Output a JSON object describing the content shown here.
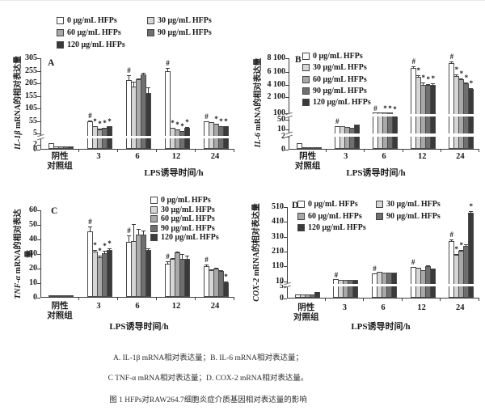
{
  "figure": {
    "xlabel": "LPS诱导时间/h",
    "series_labels": [
      "0 μg/mL HFPs",
      "30 μg/mL HFPs",
      "60 μg/mL HFPs",
      "90 μg/mL HFPs",
      "120 μg/mL HFPs"
    ],
    "series_colors": [
      "#ffffff",
      "#d6d6d6",
      "#a8a8a8",
      "#6f6f6f",
      "#3a3a3a"
    ]
  },
  "chart_data": [
    {
      "id": "A",
      "type": "bar",
      "panel_label": "A",
      "ylabel_gene": "IL-1β",
      "ylabel_rest": " mRNA的相对表达量",
      "ytick_labels": [
        "0",
        "2",
        "5",
        "55",
        "105",
        "155",
        "205",
        "255",
        "305"
      ],
      "ytick_values": [
        0,
        2,
        5,
        55,
        105,
        155,
        205,
        255,
        305
      ],
      "anchors": [
        [
          0,
          0
        ],
        [
          2,
          0.05
        ],
        [
          5,
          0.175
        ],
        [
          305,
          1
        ]
      ],
      "break_fracs": [
        0.135
      ],
      "categories": [
        "阴性\n对照组",
        "3",
        "6",
        "12",
        "24"
      ],
      "groups": [
        {
          "values": [
            2.2,
            1.0,
            0.9,
            0.9,
            1.1
          ],
          "errors": [
            0.3,
            0.15,
            0.1,
            0.1,
            0.15
          ],
          "markers": [
            "",
            "",
            "",
            "",
            ""
          ]
        },
        {
          "values": [
            52,
            30,
            20,
            24,
            32
          ],
          "errors": [
            6,
            4,
            4,
            3,
            4
          ],
          "markers": [
            "#",
            "*",
            "*",
            "*",
            "*"
          ]
        },
        {
          "values": [
            215,
            190,
            218,
            238,
            162
          ],
          "errors": [
            22,
            22,
            7,
            9,
            28
          ],
          "markers": [
            "#",
            "",
            "",
            "",
            ""
          ]
        },
        {
          "values": [
            250,
            24,
            18,
            12,
            26
          ],
          "errors": [
            16,
            5,
            4,
            3,
            5
          ],
          "markers": [
            "#",
            "*",
            "*",
            "*",
            "*"
          ]
        },
        {
          "values": [
            50,
            46,
            40,
            33,
            32
          ],
          "errors": [
            5,
            4,
            4,
            3,
            3
          ],
          "markers": [
            "#",
            "",
            "*",
            "*",
            "*"
          ]
        }
      ]
    },
    {
      "id": "B",
      "type": "bar",
      "panel_label": "B",
      "ylabel_gene": "IL-6",
      "ylabel_rest": " mRNA的相对表达量",
      "ytick_labels": [
        "0",
        "2",
        "10",
        "50",
        "100",
        "2 100",
        "4 100",
        "6 100",
        "8 100"
      ],
      "ytick_values": [
        0,
        2,
        10,
        50,
        100,
        2100,
        4100,
        6100,
        8100
      ],
      "anchors": [
        [
          0,
          0
        ],
        [
          2,
          0.14
        ],
        [
          10,
          0.225
        ],
        [
          50,
          0.325
        ],
        [
          100,
          0.4
        ],
        [
          2100,
          0.572
        ],
        [
          4100,
          0.71
        ],
        [
          6100,
          0.846
        ],
        [
          8100,
          1
        ]
      ],
      "break_fracs": [
        0.155,
        0.375
      ],
      "categories": [
        "阴性\n对照组",
        "3",
        "6",
        "12",
        "24"
      ],
      "groups": [
        {
          "values": [
            0.9,
            0.15,
            0.1,
            0.1,
            0.15
          ],
          "errors": [
            0.15,
            0,
            0,
            0,
            0
          ],
          "markers": [
            "",
            "",
            "",
            "",
            ""
          ]
        },
        {
          "values": [
            20,
            18,
            15,
            12,
            25
          ],
          "errors": [
            4,
            2,
            2,
            2,
            3
          ],
          "markers": [
            "#",
            "",
            "",
            "",
            ""
          ]
        },
        {
          "values": [
            105,
            101,
            100,
            97,
            88
          ],
          "errors": [
            7,
            5,
            5,
            5,
            6
          ],
          "markers": [
            "#",
            "",
            "*",
            "*",
            "*"
          ]
        },
        {
          "values": [
            6600,
            5300,
            4000,
            3900,
            4000
          ],
          "errors": [
            300,
            400,
            400,
            350,
            350
          ],
          "markers": [
            "#",
            "*",
            "*",
            "*",
            "*"
          ]
        },
        {
          "values": [
            7350,
            5400,
            4850,
            4250,
            3300
          ],
          "errors": [
            350,
            300,
            300,
            250,
            250
          ],
          "markers": [
            "#",
            "*",
            "*",
            "*",
            "*"
          ]
        }
      ]
    },
    {
      "id": "C",
      "type": "bar",
      "panel_label": "C",
      "ylabel_gene": "TNF-α",
      "ylabel_rest": " mRNA的相对表达量",
      "ytick_labels": [
        "0",
        "10",
        "20",
        "30",
        "40",
        "50",
        "60"
      ],
      "ytick_values": [
        0,
        10,
        20,
        30,
        40,
        50,
        60
      ],
      "anchors": [
        [
          0,
          0
        ],
        [
          60,
          1
        ]
      ],
      "break_fracs": [],
      "categories": [
        "阴性\n对照组",
        "3",
        "6",
        "12",
        "24"
      ],
      "groups": [
        {
          "values": [
            1,
            1,
            1.2,
            1,
            1
          ],
          "errors": [
            0.2,
            0.2,
            0.2,
            0.2,
            0.2
          ],
          "markers": [
            "",
            "",
            "",
            "",
            ""
          ]
        },
        {
          "values": [
            45,
            31,
            27,
            30,
            32
          ],
          "errors": [
            4,
            2,
            2,
            2,
            2
          ],
          "markers": [
            "#",
            "*",
            "*",
            "*",
            "*"
          ]
        },
        {
          "values": [
            38,
            38.5,
            43,
            43,
            32.5
          ],
          "errors": [
            5,
            12,
            4,
            3,
            1.5
          ],
          "markers": [
            "#",
            "",
            "",
            "",
            ""
          ]
        },
        {
          "values": [
            23,
            26,
            30.5,
            26,
            26
          ],
          "errors": [
            2,
            1,
            1,
            4,
            3
          ],
          "markers": [
            "#",
            "",
            "",
            "",
            ""
          ]
        },
        {
          "values": [
            21,
            18.5,
            19.5,
            18,
            10
          ],
          "errors": [
            2,
            1,
            1,
            1,
            1
          ],
          "markers": [
            "#",
            "",
            "",
            "",
            "*"
          ]
        }
      ]
    },
    {
      "id": "D",
      "type": "bar",
      "panel_label": "D",
      "ylabel_gene": "COX-2",
      "ylabel_rest": " mRNA的相对表达量",
      "ytick_labels": [
        "0",
        "5",
        "10",
        "110",
        "210",
        "310",
        "410",
        "510"
      ],
      "ytick_values": [
        0,
        5,
        10,
        110,
        210,
        310,
        410,
        510
      ],
      "anchors": [
        [
          0,
          0
        ],
        [
          5,
          0.13
        ],
        [
          10,
          0.19
        ],
        [
          510,
          1
        ]
      ],
      "break_fracs": [
        0.145
      ],
      "categories": [
        "阴性\n对照组",
        "3",
        "6",
        "12",
        "24"
      ],
      "groups": [
        {
          "values": [
            1.5,
            1.5,
            1.2,
            1.5,
            2.4
          ],
          "errors": [
            0.3,
            0.2,
            0.2,
            0.2,
            0.4
          ],
          "markers": [
            "",
            "",
            "",
            "",
            ""
          ]
        },
        {
          "values": [
            16,
            14,
            13,
            13,
            14
          ],
          "errors": [
            2,
            1,
            1,
            1,
            1
          ],
          "markers": [
            "#",
            "",
            "",
            "",
            ""
          ]
        },
        {
          "values": [
            55,
            70,
            60,
            62,
            64
          ],
          "errors": [
            6,
            5,
            4,
            4,
            4
          ],
          "markers": [
            "#",
            "",
            "",
            "",
            ""
          ]
        },
        {
          "values": [
            100,
            93,
            78,
            108,
            88
          ],
          "errors": [
            8,
            6,
            5,
            8,
            6
          ],
          "markers": [
            "#",
            "",
            "",
            "",
            ""
          ]
        },
        {
          "values": [
            275,
            180,
            207,
            243,
            468
          ],
          "errors": [
            18,
            15,
            15,
            18,
            14
          ],
          "markers": [
            "#",
            "*",
            "*",
            "",
            "*"
          ]
        }
      ]
    }
  ],
  "captions": {
    "line1": "A. IL-1β mRNA相对表达量；B. IL-6 mRNA相对表达量；",
    "line2": "C TNF-α mRNA相对表达量；D. COX-2 mRNA相对表达量。",
    "line3": "图 1 HFPs对RAW264.7细胞炎症介质基因相对表达量的影响"
  }
}
